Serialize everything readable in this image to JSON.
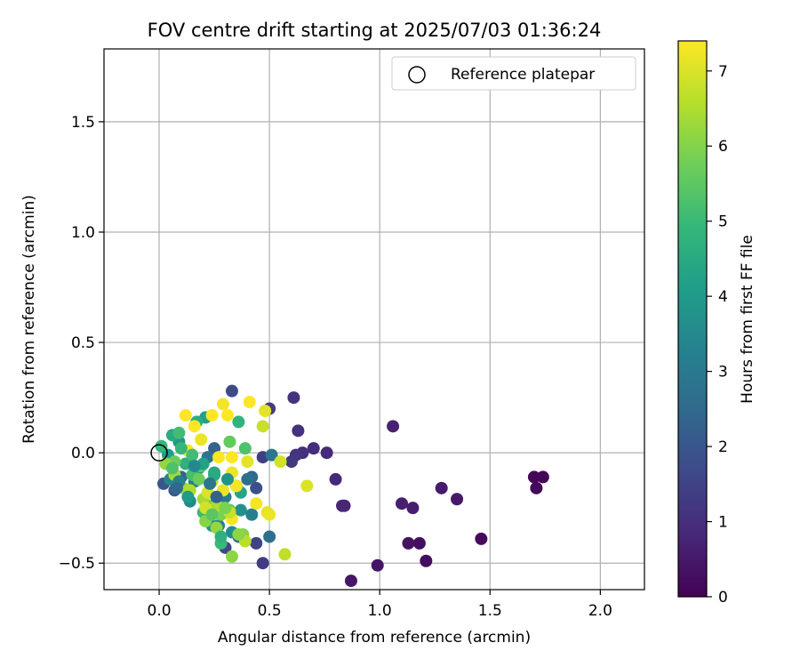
{
  "chart_data": {
    "type": "scatter",
    "title": "FOV centre drift starting at 2025/07/03 01:36:24",
    "xlabel": "Angular distance from reference (arcmin)",
    "ylabel": "Rotation from reference (arcmin)",
    "xlim": [
      -0.25,
      2.2
    ],
    "ylim": [
      -0.62,
      1.83
    ],
    "x_ticks": [
      0.0,
      0.5,
      1.0,
      1.5,
      2.0
    ],
    "x_tick_labels": [
      "0.0",
      "0.5",
      "1.0",
      "1.5",
      "2.0"
    ],
    "y_ticks": [
      -0.5,
      0.0,
      0.5,
      1.0,
      1.5
    ],
    "y_tick_labels": [
      "−0.5",
      "0.0",
      "0.5",
      "1.0",
      "1.5"
    ],
    "grid": true,
    "legend": {
      "position": "top-right",
      "entries": [
        "Reference platepar"
      ]
    },
    "reference_point": {
      "x": 0.0,
      "y": 0.0,
      "label": "Reference platepar"
    },
    "colorbar": {
      "label": "Hours from first FF file",
      "min": 0,
      "max": 7.4,
      "ticks": [
        0,
        1,
        2,
        3,
        4,
        5,
        6,
        7
      ],
      "tick_labels": [
        "0",
        "1",
        "2",
        "3",
        "4",
        "5",
        "6",
        "7"
      ],
      "colormap": [
        "#440154",
        "#482878",
        "#3e4989",
        "#31688e",
        "#26828e",
        "#1f9e89",
        "#35b779",
        "#6ece58",
        "#b5de2b",
        "#fde725"
      ]
    },
    "points": [
      {
        "x": 1.74,
        "y": -0.11,
        "h": 0.05
      },
      {
        "x": 1.7,
        "y": -0.11,
        "h": 0.1
      },
      {
        "x": 1.71,
        "y": -0.16,
        "h": 0.15
      },
      {
        "x": 1.46,
        "y": -0.39,
        "h": 0.2
      },
      {
        "x": 1.21,
        "y": -0.49,
        "h": 0.25
      },
      {
        "x": 1.18,
        "y": -0.41,
        "h": 0.3
      },
      {
        "x": 1.13,
        "y": -0.41,
        "h": 0.35
      },
      {
        "x": 0.99,
        "y": -0.51,
        "h": 0.4
      },
      {
        "x": 0.87,
        "y": -0.58,
        "h": 0.45
      },
      {
        "x": 1.35,
        "y": -0.21,
        "h": 0.5
      },
      {
        "x": 1.28,
        "y": -0.16,
        "h": 0.55
      },
      {
        "x": 1.15,
        "y": -0.25,
        "h": 0.6
      },
      {
        "x": 1.1,
        "y": -0.23,
        "h": 0.65
      },
      {
        "x": 1.06,
        "y": 0.12,
        "h": 0.7
      },
      {
        "x": 0.84,
        "y": -0.24,
        "h": 0.75
      },
      {
        "x": 0.83,
        "y": -0.24,
        "h": 0.8
      },
      {
        "x": 0.8,
        "y": -0.12,
        "h": 0.85
      },
      {
        "x": 0.76,
        "y": 0.0,
        "h": 0.9
      },
      {
        "x": 0.7,
        "y": 0.02,
        "h": 0.95
      },
      {
        "x": 0.65,
        "y": 0.0,
        "h": 1.0
      },
      {
        "x": 0.63,
        "y": 0.1,
        "h": 1.05
      },
      {
        "x": 0.61,
        "y": 0.25,
        "h": 1.1
      },
      {
        "x": 0.62,
        "y": -0.01,
        "h": 1.15
      },
      {
        "x": 0.6,
        "y": -0.04,
        "h": 1.2
      },
      {
        "x": 0.47,
        "y": -0.5,
        "h": 1.3
      },
      {
        "x": 0.5,
        "y": 0.2,
        "h": 1.35
      },
      {
        "x": 0.47,
        "y": -0.02,
        "h": 1.4
      },
      {
        "x": 0.44,
        "y": -0.41,
        "h": 1.5
      },
      {
        "x": 0.3,
        "y": -0.43,
        "h": 1.6
      },
      {
        "x": 0.33,
        "y": 0.28,
        "h": 1.7
      },
      {
        "x": 0.44,
        "y": -0.16,
        "h": 1.8
      },
      {
        "x": 0.02,
        "y": -0.14,
        "h": 2.0
      },
      {
        "x": 0.07,
        "y": -0.17,
        "h": 2.1
      },
      {
        "x": 0.35,
        "y": -0.15,
        "h": 2.2
      },
      {
        "x": 0.25,
        "y": 0.02,
        "h": 2.3
      },
      {
        "x": 0.1,
        "y": -0.11,
        "h": 2.4
      },
      {
        "x": 0.42,
        "y": -0.11,
        "h": 2.5
      },
      {
        "x": 0.36,
        "y": -0.38,
        "h": 2.6
      },
      {
        "x": 0.5,
        "y": -0.38,
        "h": 2.7
      },
      {
        "x": 0.22,
        "y": -0.02,
        "h": 2.8
      },
      {
        "x": 0.51,
        "y": -0.01,
        "h": 2.9
      },
      {
        "x": 0.3,
        "y": -0.2,
        "h": 3.0
      },
      {
        "x": 0.16,
        "y": -0.13,
        "h": 3.1
      },
      {
        "x": 0.42,
        "y": -0.28,
        "h": 3.2
      },
      {
        "x": 0.27,
        "y": -0.33,
        "h": 3.3
      },
      {
        "x": 0.05,
        "y": -0.12,
        "h": 3.4
      },
      {
        "x": 0.14,
        "y": -0.22,
        "h": 3.5
      },
      {
        "x": 0.33,
        "y": -0.36,
        "h": 3.6
      },
      {
        "x": 0.37,
        "y": -0.26,
        "h": 3.7
      },
      {
        "x": 0.24,
        "y": -0.33,
        "h": 3.8
      },
      {
        "x": 0.09,
        "y": 0.05,
        "h": 3.9
      },
      {
        "x": 0.18,
        "y": -0.07,
        "h": 4.0
      },
      {
        "x": 0.04,
        "y": -0.01,
        "h": 4.1
      },
      {
        "x": 0.21,
        "y": 0.16,
        "h": 4.2
      },
      {
        "x": 0.37,
        "y": -0.18,
        "h": 4.3
      },
      {
        "x": 0.25,
        "y": -0.09,
        "h": 4.4
      },
      {
        "x": 0.06,
        "y": 0.08,
        "h": 4.5
      },
      {
        "x": 0.17,
        "y": 0.14,
        "h": 4.6
      },
      {
        "x": 0.12,
        "y": -0.05,
        "h": 4.7
      },
      {
        "x": 0.36,
        "y": 0.14,
        "h": 4.8
      },
      {
        "x": 0.01,
        "y": 0.03,
        "h": 4.9
      },
      {
        "x": 0.2,
        "y": -0.27,
        "h": 5.0
      },
      {
        "x": 0.28,
        "y": -0.41,
        "h": 5.0
      },
      {
        "x": 0.09,
        "y": 0.09,
        "h": 5.1
      },
      {
        "x": 0.15,
        "y": -0.1,
        "h": 5.2
      },
      {
        "x": 0.39,
        "y": 0.02,
        "h": 5.3
      },
      {
        "x": 0.32,
        "y": -0.26,
        "h": 5.4
      },
      {
        "x": 0.19,
        "y": -0.06,
        "h": 5.5
      },
      {
        "x": 0.32,
        "y": 0.05,
        "h": 5.6
      },
      {
        "x": 0.07,
        "y": -0.04,
        "h": 5.7
      },
      {
        "x": 0.23,
        "y": -0.24,
        "h": 5.8
      },
      {
        "x": 0.28,
        "y": -0.28,
        "h": 5.9
      },
      {
        "x": 0.21,
        "y": -0.31,
        "h": 6.0
      },
      {
        "x": 0.38,
        "y": -0.37,
        "h": 6.0
      },
      {
        "x": 0.33,
        "y": -0.47,
        "h": 6.1
      },
      {
        "x": 0.03,
        "y": -0.05,
        "h": 6.2
      },
      {
        "x": 0.11,
        "y": -0.16,
        "h": 6.3
      },
      {
        "x": 0.2,
        "y": -0.21,
        "h": 6.4
      },
      {
        "x": 0.26,
        "y": -0.24,
        "h": 6.5
      },
      {
        "x": 0.39,
        "y": -0.4,
        "h": 6.6
      },
      {
        "x": 0.57,
        "y": -0.46,
        "h": 6.7
      },
      {
        "x": 0.47,
        "y": 0.12,
        "h": 6.8
      },
      {
        "x": 0.55,
        "y": -0.04,
        "h": 6.9
      },
      {
        "x": 0.67,
        "y": -0.15,
        "h": 7.0
      },
      {
        "x": 0.22,
        "y": -0.18,
        "h": 7.0
      },
      {
        "x": 0.49,
        "y": -0.27,
        "h": 7.1
      },
      {
        "x": 0.48,
        "y": 0.19,
        "h": 7.1
      },
      {
        "x": 0.19,
        "y": 0.06,
        "h": 7.2
      },
      {
        "x": 0.33,
        "y": -0.09,
        "h": 7.2
      },
      {
        "x": 0.29,
        "y": -0.17,
        "h": 7.2
      },
      {
        "x": 0.44,
        "y": -0.23,
        "h": 7.3
      },
      {
        "x": 0.13,
        "y": 0.01,
        "h": 7.3
      },
      {
        "x": 0.29,
        "y": 0.22,
        "h": 7.3
      },
      {
        "x": 0.35,
        "y": -0.15,
        "h": 7.3
      },
      {
        "x": 0.41,
        "y": 0.23,
        "h": 7.4
      },
      {
        "x": 0.16,
        "y": 0.12,
        "h": 7.4
      },
      {
        "x": 0.24,
        "y": 0.17,
        "h": 7.4
      },
      {
        "x": 0.12,
        "y": 0.17,
        "h": 7.4
      },
      {
        "x": 0.27,
        "y": -0.02,
        "h": 7.4
      },
      {
        "x": 0.33,
        "y": -0.02,
        "h": 7.4
      },
      {
        "x": 0.31,
        "y": 0.17,
        "h": 7.4
      },
      {
        "x": 0.33,
        "y": -0.3,
        "h": 7.3
      },
      {
        "x": 0.5,
        "y": -0.28,
        "h": 7.2
      },
      {
        "x": 0.4,
        "y": -0.04,
        "h": 7.1
      },
      {
        "x": 0.21,
        "y": -0.25,
        "h": 6.9
      },
      {
        "x": 0.32,
        "y": -0.27,
        "h": 6.8
      },
      {
        "x": 0.24,
        "y": -0.13,
        "h": 6.7
      },
      {
        "x": 0.14,
        "y": -0.17,
        "h": 6.5
      },
      {
        "x": 0.07,
        "y": -0.1,
        "h": 6.4
      },
      {
        "x": 0.26,
        "y": -0.34,
        "h": 6.2
      },
      {
        "x": 0.36,
        "y": -0.37,
        "h": 6.1
      },
      {
        "x": 0.3,
        "y": -0.25,
        "h": 5.9
      },
      {
        "x": 0.18,
        "y": -0.12,
        "h": 5.7
      },
      {
        "x": 0.24,
        "y": -0.28,
        "h": 5.5
      },
      {
        "x": 0.06,
        "y": -0.07,
        "h": 5.3
      },
      {
        "x": 0.15,
        "y": -0.01,
        "h": 5.1
      },
      {
        "x": 0.1,
        "y": 0.02,
        "h": 4.9
      },
      {
        "x": 0.28,
        "y": -0.38,
        "h": 4.7
      },
      {
        "x": 0.25,
        "y": -0.1,
        "h": 4.5
      },
      {
        "x": 0.2,
        "y": -0.05,
        "h": 4.2
      },
      {
        "x": 0.13,
        "y": -0.2,
        "h": 4.0
      },
      {
        "x": 0.31,
        "y": -0.12,
        "h": 3.8
      },
      {
        "x": 0.16,
        "y": -0.06,
        "h": 3.5
      },
      {
        "x": 0.09,
        "y": -0.13,
        "h": 3.2
      },
      {
        "x": 0.23,
        "y": -0.14,
        "h": 2.9
      },
      {
        "x": 0.4,
        "y": -0.12,
        "h": 2.7
      },
      {
        "x": 0.08,
        "y": -0.16,
        "h": 2.5
      },
      {
        "x": 0.26,
        "y": -0.2,
        "h": 2.3
      }
    ]
  }
}
